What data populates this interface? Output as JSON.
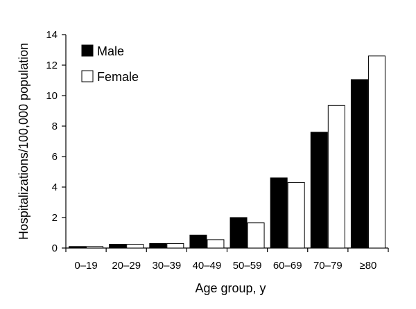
{
  "chart_data": {
    "type": "bar",
    "title": "",
    "xlabel": "Age group, y",
    "ylabel": "Hospitalizations/100,000 population",
    "ylim": [
      0,
      14
    ],
    "yticks": [
      0,
      2,
      4,
      6,
      8,
      10,
      12,
      14
    ],
    "grid": false,
    "legend_position": "top-left",
    "categories": [
      "0–19",
      "20–29",
      "30–39",
      "40–49",
      "50–59",
      "60–69",
      "70–79",
      "≥80"
    ],
    "series": [
      {
        "name": "Male",
        "color": "#000000",
        "values": [
          0.1,
          0.25,
          0.3,
          0.85,
          2.0,
          4.6,
          7.6,
          11.05
        ]
      },
      {
        "name": "Female",
        "color": "#ffffff",
        "values": [
          0.1,
          0.25,
          0.3,
          0.55,
          1.65,
          4.3,
          9.35,
          12.6
        ]
      }
    ]
  }
}
